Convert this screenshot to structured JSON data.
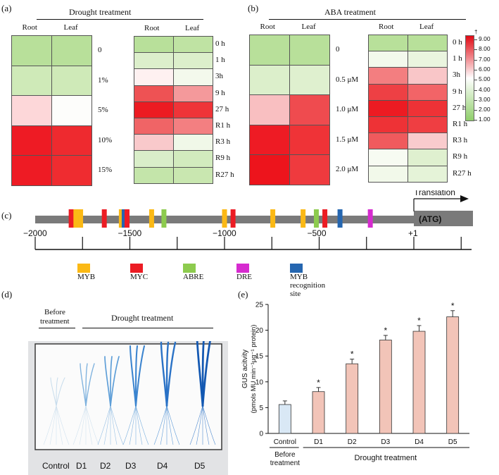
{
  "panel_a": {
    "label": "(a)",
    "title": "Drought treatment",
    "columns": [
      "Root",
      "Leaf"
    ],
    "left_rows": [
      {
        "label": "0",
        "root": "#b8e09a",
        "leaf": "#b8e09a"
      },
      {
        "label": "1%",
        "root": "#cfeab8",
        "leaf": "#cfeab8"
      },
      {
        "label": "5%",
        "root": "#fdd7d9",
        "leaf": "#fdfdfb"
      },
      {
        "label": "10%",
        "root": "#ee1b24",
        "leaf": "#ee2a2f"
      },
      {
        "label": "15%",
        "root": "#ee1b24",
        "leaf": "#ef2c30"
      }
    ],
    "right_rows": [
      {
        "label": "0 h",
        "root": "#b8e09a",
        "leaf": "#bfe3a3"
      },
      {
        "label": "1 h",
        "root": "#dcefcb",
        "leaf": "#dcefcb"
      },
      {
        "label": "3h",
        "root": "#fef1f1",
        "leaf": "#f3f9ec"
      },
      {
        "label": "9 h",
        "root": "#ee5254",
        "leaf": "#f4999b"
      },
      {
        "label": "27 h",
        "root": "#ec1b22",
        "leaf": "#ef3438"
      },
      {
        "label": "R1 h",
        "root": "#f06466",
        "leaf": "#f37f81"
      },
      {
        "label": "R3 h",
        "root": "#f9c9cb",
        "leaf": "#f0f8e8"
      },
      {
        "label": "R9 h",
        "root": "#d9eec9",
        "leaf": "#d2ebbe"
      },
      {
        "label": "R27 h",
        "root": "#c4e5aa",
        "leaf": "#c9e7b0"
      }
    ]
  },
  "panel_b": {
    "label": "(b)",
    "title": "ABA treatment",
    "columns": [
      "Root",
      "Leaf"
    ],
    "left_rows": [
      {
        "label": "0",
        "root": "#b8e09a",
        "leaf": "#b8e09a"
      },
      {
        "label": "0.5 μM",
        "root": "#dcefcb",
        "leaf": "#dff0cf"
      },
      {
        "label": "1.0 μM",
        "root": "#f9bfc1",
        "leaf": "#ef4b4f"
      },
      {
        "label": "1.5 μM",
        "root": "#ee1b24",
        "leaf": "#ef3337"
      },
      {
        "label": "2.0 μM",
        "root": "#ed141c",
        "leaf": "#ef3a3e"
      }
    ],
    "right_rows": [
      {
        "label": "0 h",
        "root": "#b8e09a",
        "leaf": "#b8e09a"
      },
      {
        "label": "1 h",
        "root": "#f3f9ec",
        "leaf": "#eaf5df"
      },
      {
        "label": "3h",
        "root": "#f37e80",
        "leaf": "#f9c6c8"
      },
      {
        "label": "9 h",
        "root": "#ee4044",
        "leaf": "#f26467"
      },
      {
        "label": "27 h",
        "root": "#ec1b22",
        "leaf": "#ee3236"
      },
      {
        "label": "R1 h",
        "root": "#ee3236",
        "leaf": "#ef3e42"
      },
      {
        "label": "R3 h",
        "root": "#f05a5d",
        "leaf": "#f9cbcd"
      },
      {
        "label": "R9 h",
        "root": "#f7fbf2",
        "leaf": "#dff0cf"
      },
      {
        "label": "R27 h",
        "root": "#f2f9ea",
        "leaf": "#e5f3d8"
      }
    ],
    "scale": {
      "ticks": [
        "9.00",
        "8.00",
        "7.00",
        "6.00",
        "5.00",
        "4.00",
        "3.00",
        "2.00",
        "1.00"
      ],
      "top_color": "#e10a14",
      "mid_color": "#ffffff",
      "bottom_color": "#8fce6a",
      "top_marker": "†"
    }
  },
  "panel_c": {
    "label": "(c)",
    "translation_label": "Translation",
    "atg_label": "(ATG)",
    "positions": [
      "−2000",
      "−1500",
      "−1000",
      "−500",
      "+1"
    ],
    "legend": [
      {
        "name": "MYB",
        "color": "#fbb915"
      },
      {
        "name": "MYC",
        "color": "#ec1c24"
      },
      {
        "name": "ABRE",
        "color": "#8dcb4e"
      },
      {
        "name": "DRE",
        "color": "#d62bcf"
      },
      {
        "name": "MYB recognition site",
        "color": "#2566b0"
      }
    ],
    "elements": [
      {
        "type": "MYC",
        "pos": -1810
      },
      {
        "type": "MYB",
        "pos": -1785
      },
      {
        "type": "MYB",
        "pos": -1760
      },
      {
        "type": "MYC",
        "pos": -1635
      },
      {
        "type": "MYB",
        "pos": -1545
      },
      {
        "type": "MYB recognition site",
        "pos": -1530
      },
      {
        "type": "MYC",
        "pos": -1515
      },
      {
        "type": "MYB",
        "pos": -1385
      },
      {
        "type": "ABRE",
        "pos": -1320
      },
      {
        "type": "MYB",
        "pos": -1000
      },
      {
        "type": "MYC",
        "pos": -955
      },
      {
        "type": "MYB",
        "pos": -745
      },
      {
        "type": "MYB",
        "pos": -585
      },
      {
        "type": "ABRE",
        "pos": -515
      },
      {
        "type": "MYC",
        "pos": -470
      },
      {
        "type": "MYB recognition site",
        "pos": -390
      },
      {
        "type": "DRE",
        "pos": -230
      }
    ]
  },
  "panel_d": {
    "label": "(d)",
    "before_label_line1": "Before",
    "before_label_line2": "treatment",
    "drought_label": "Drought treatment",
    "plant_labels": [
      "Control",
      "D1",
      "D2",
      "D3",
      "D4",
      "D5"
    ]
  },
  "panel_e": {
    "label": "(e)",
    "before_line1": "Before",
    "before_line2": "treatment",
    "drought_label": "Drought treatment"
  },
  "chart_data": {
    "type": "bar",
    "categories": [
      "Control",
      "D1",
      "D2",
      "D3",
      "D4",
      "D5"
    ],
    "values": [
      5.6,
      8.1,
      13.5,
      18.1,
      19.8,
      22.6
    ],
    "errors": [
      0.7,
      0.8,
      0.9,
      0.9,
      1.1,
      1.2
    ],
    "significance": [
      "",
      "*",
      "*",
      "*",
      "*",
      "*"
    ],
    "colors": [
      "#d9e8f5",
      "#f2c4b8",
      "#f2c4b8",
      "#f2c4b8",
      "#f2c4b8",
      "#f2c4b8"
    ],
    "ylabel_line1": "GUS acitvity",
    "ylabel_line2": "(pmols MU min⁻¹μg⁻¹ protein)",
    "ylim": [
      0,
      25
    ],
    "yticks": [
      "0",
      "5",
      "10",
      "15",
      "20",
      "25"
    ]
  }
}
